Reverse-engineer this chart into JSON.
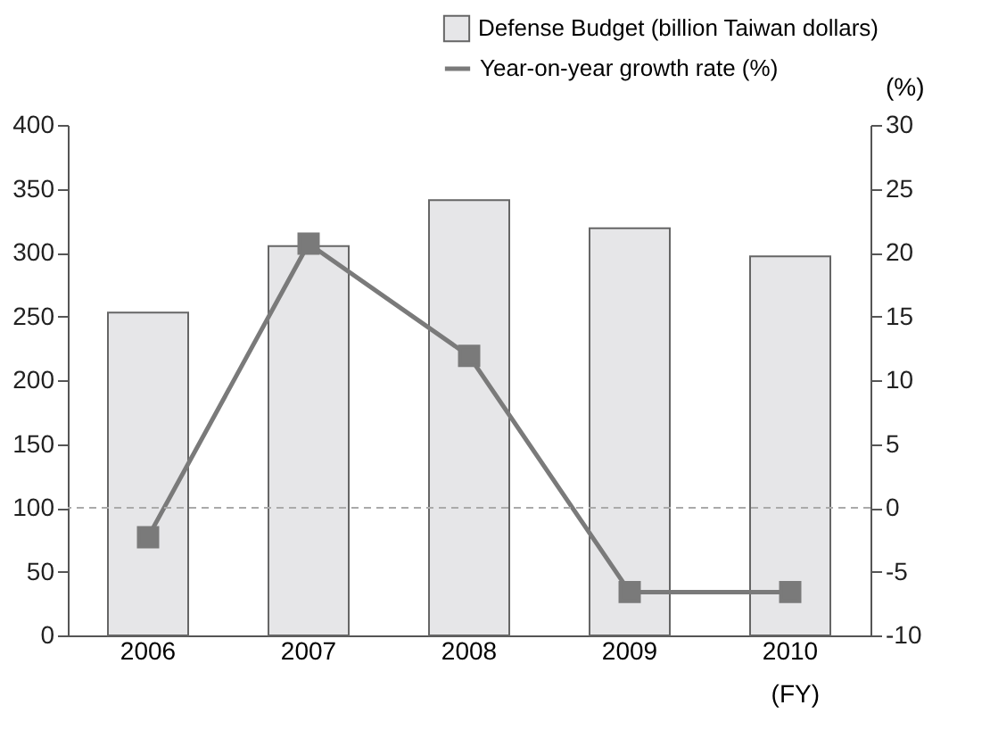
{
  "chart_data": {
    "type": "bar",
    "xlabel": "(FY)",
    "y2label": "(%)",
    "categories": [
      "2006",
      "2007",
      "2008",
      "2009",
      "2010"
    ],
    "series": [
      {
        "name": "Defense Budget (billion Taiwan dollars)",
        "color": "#e6e6e8",
        "values": [
          253,
          305,
          341,
          319,
          297
        ]
      },
      {
        "name": "Year-on-year growth rate (%)",
        "type": "line",
        "axis": "y2",
        "color": "#7a7a7a",
        "marker": "square",
        "values": [
          -2.3,
          20.7,
          11.9,
          -6.6,
          -6.6
        ]
      }
    ],
    "ylim": [
      0,
      400
    ],
    "yticks": [
      0,
      50,
      100,
      150,
      200,
      250,
      300,
      350,
      400
    ],
    "y2lim": [
      -10,
      30
    ],
    "y2ticks": [
      -10,
      -5,
      0,
      5,
      10,
      15,
      20,
      25,
      30
    ],
    "ref_lines": [
      {
        "axis": "y2",
        "value": 0,
        "color": "#aaaaaa",
        "line_style": "dashed"
      }
    ],
    "grid": false,
    "legend": "top right"
  }
}
